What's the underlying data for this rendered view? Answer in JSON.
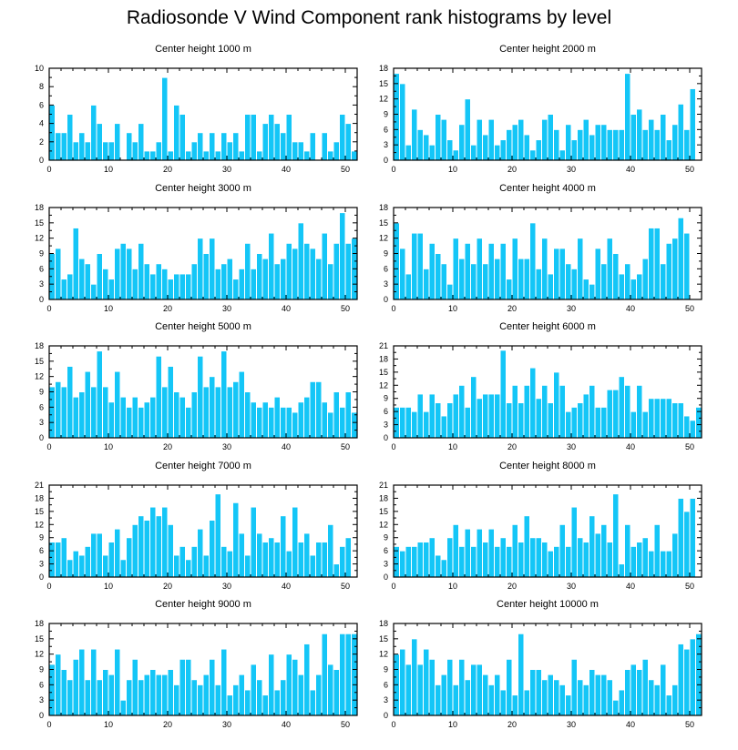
{
  "title": "Radiosonde V Wind Component rank histograms by level",
  "colors": {
    "bar": "#14c6f7",
    "bar_edge": "#ffffff",
    "axis": "#000000"
  },
  "chart_data": [
    {
      "type": "bar",
      "title": "Center height 1000 m",
      "xlim": [
        0,
        52
      ],
      "ylim": [
        0,
        10
      ],
      "xticks": [
        0,
        10,
        20,
        30,
        40,
        50
      ],
      "yticks": [
        0,
        2,
        4,
        6,
        8,
        10
      ],
      "values": [
        6,
        3,
        3,
        5,
        2,
        3,
        2,
        6,
        4,
        2,
        2,
        4,
        0,
        3,
        2,
        4,
        1,
        1,
        2,
        9,
        1,
        6,
        5,
        1,
        2,
        3,
        1,
        3,
        1,
        3,
        2,
        3,
        1,
        5,
        5,
        1,
        4,
        5,
        4,
        3,
        5,
        2,
        2,
        1,
        3,
        0,
        3,
        1,
        2,
        5,
        4,
        1
      ]
    },
    {
      "type": "bar",
      "title": "Center height 2000 m",
      "xlim": [
        0,
        52
      ],
      "ylim": [
        0,
        18
      ],
      "xticks": [
        0,
        10,
        20,
        30,
        40,
        50
      ],
      "yticks": [
        0,
        3,
        6,
        9,
        12,
        15,
        18
      ],
      "values": [
        17,
        15,
        3,
        10,
        6,
        5,
        3,
        9,
        8,
        4,
        2,
        7,
        12,
        3,
        8,
        5,
        8,
        3,
        4,
        6,
        7,
        8,
        5,
        2,
        4,
        8,
        9,
        6,
        2,
        7,
        4,
        6,
        8,
        5,
        7,
        7,
        6,
        6,
        6,
        17,
        9,
        10,
        6,
        8,
        6,
        9,
        4,
        7,
        11,
        6,
        14,
        0
      ]
    },
    {
      "type": "bar",
      "title": "Center height 3000 m",
      "xlim": [
        0,
        52
      ],
      "ylim": [
        0,
        18
      ],
      "xticks": [
        0,
        10,
        20,
        30,
        40,
        50
      ],
      "yticks": [
        0,
        3,
        6,
        9,
        12,
        15,
        18
      ],
      "values": [
        9,
        10,
        4,
        5,
        14,
        8,
        7,
        3,
        9,
        6,
        4,
        10,
        11,
        10,
        6,
        11,
        7,
        5,
        7,
        6,
        4,
        5,
        5,
        5,
        7,
        12,
        9,
        12,
        6,
        7,
        8,
        4,
        6,
        11,
        6,
        9,
        8,
        13,
        7,
        8,
        11,
        10,
        15,
        11,
        10,
        8,
        13,
        7,
        11,
        17,
        11,
        12
      ]
    },
    {
      "type": "bar",
      "title": "Center height 4000 m",
      "xlim": [
        0,
        52
      ],
      "ylim": [
        0,
        18
      ],
      "xticks": [
        0,
        10,
        20,
        30,
        40,
        50
      ],
      "yticks": [
        0,
        3,
        6,
        9,
        12,
        15,
        18
      ],
      "values": [
        15,
        10,
        5,
        13,
        13,
        6,
        11,
        9,
        7,
        3,
        12,
        8,
        11,
        7,
        12,
        7,
        11,
        8,
        11,
        4,
        12,
        8,
        8,
        15,
        6,
        12,
        5,
        10,
        10,
        7,
        6,
        12,
        4,
        3,
        10,
        7,
        12,
        9,
        5,
        7,
        4,
        5,
        8,
        14,
        14,
        7,
        11,
        12,
        16,
        13,
        0,
        0
      ]
    },
    {
      "type": "bar",
      "title": "Center height 5000 m",
      "xlim": [
        0,
        52
      ],
      "ylim": [
        0,
        18
      ],
      "xticks": [
        0,
        10,
        20,
        30,
        40,
        50
      ],
      "yticks": [
        0,
        3,
        6,
        9,
        12,
        15,
        18
      ],
      "values": [
        10,
        11,
        10,
        14,
        8,
        9,
        13,
        10,
        17,
        10,
        7,
        13,
        8,
        6,
        8,
        6,
        7,
        8,
        16,
        10,
        14,
        9,
        8,
        6,
        9,
        16,
        10,
        12,
        10,
        17,
        10,
        11,
        13,
        9,
        7,
        6,
        7,
        6,
        8,
        6,
        6,
        5,
        7,
        8,
        11,
        11,
        7,
        5,
        9,
        6,
        9,
        5
      ]
    },
    {
      "type": "bar",
      "title": "Center height 6000 m",
      "xlim": [
        0,
        52
      ],
      "ylim": [
        0,
        21
      ],
      "xticks": [
        0,
        10,
        20,
        30,
        40,
        50
      ],
      "yticks": [
        0,
        3,
        6,
        9,
        12,
        15,
        18,
        21
      ],
      "values": [
        7,
        7,
        7,
        6,
        10,
        6,
        10,
        8,
        5,
        8,
        10,
        12,
        7,
        14,
        9,
        10,
        10,
        10,
        20,
        8,
        12,
        8,
        12,
        16,
        9,
        12,
        8,
        15,
        12,
        6,
        7,
        8,
        10,
        12,
        7,
        7,
        11,
        11,
        14,
        12,
        6,
        12,
        6,
        9,
        9,
        9,
        9,
        8,
        8,
        5,
        4,
        7
      ]
    },
    {
      "type": "bar",
      "title": "Center height 7000 m",
      "xlim": [
        0,
        52
      ],
      "ylim": [
        0,
        21
      ],
      "xticks": [
        0,
        10,
        20,
        30,
        40,
        50
      ],
      "yticks": [
        0,
        3,
        6,
        9,
        12,
        15,
        18,
        21
      ],
      "values": [
        8,
        8,
        9,
        4,
        6,
        5,
        7,
        10,
        10,
        5,
        8,
        11,
        4,
        9,
        12,
        14,
        13,
        16,
        14,
        16,
        12,
        5,
        7,
        4,
        7,
        11,
        5,
        13,
        19,
        7,
        6,
        17,
        10,
        5,
        16,
        10,
        8,
        9,
        8,
        14,
        6,
        16,
        8,
        10,
        5,
        8,
        8,
        12,
        3,
        7,
        9,
        0
      ]
    },
    {
      "type": "bar",
      "title": "Center height 8000 m",
      "xlim": [
        0,
        52
      ],
      "ylim": [
        0,
        21
      ],
      "xticks": [
        0,
        10,
        20,
        30,
        40,
        50
      ],
      "yticks": [
        0,
        3,
        6,
        9,
        12,
        15,
        18,
        21
      ],
      "values": [
        7,
        6,
        7,
        7,
        8,
        8,
        9,
        5,
        4,
        9,
        12,
        7,
        11,
        7,
        11,
        8,
        11,
        7,
        9,
        7,
        12,
        8,
        14,
        9,
        9,
        8,
        6,
        7,
        12,
        7,
        16,
        9,
        8,
        14,
        10,
        12,
        8,
        19,
        3,
        12,
        7,
        8,
        9,
        6,
        12,
        6,
        6,
        10,
        18,
        15,
        18,
        0
      ]
    },
    {
      "type": "bar",
      "title": "Center height 9000 m",
      "xlim": [
        0,
        52
      ],
      "ylim": [
        0,
        18
      ],
      "xticks": [
        0,
        10,
        20,
        30,
        40,
        50
      ],
      "yticks": [
        0,
        3,
        6,
        9,
        12,
        15,
        18
      ],
      "values": [
        10,
        12,
        9,
        7,
        11,
        13,
        7,
        13,
        7,
        9,
        8,
        13,
        3,
        7,
        11,
        7,
        8,
        9,
        8,
        8,
        9,
        6,
        11,
        11,
        7,
        6,
        8,
        11,
        6,
        13,
        4,
        6,
        8,
        5,
        10,
        7,
        4,
        12,
        5,
        7,
        12,
        11,
        8,
        14,
        5,
        8,
        16,
        10,
        9,
        16,
        16,
        16
      ]
    },
    {
      "type": "bar",
      "title": "Center height 10000 m",
      "xlim": [
        0,
        52
      ],
      "ylim": [
        0,
        18
      ],
      "xticks": [
        0,
        10,
        20,
        30,
        40,
        50
      ],
      "yticks": [
        0,
        3,
        6,
        9,
        12,
        15,
        18
      ],
      "values": [
        12,
        13,
        10,
        15,
        10,
        13,
        11,
        6,
        8,
        11,
        6,
        11,
        7,
        10,
        10,
        8,
        6,
        8,
        5,
        11,
        4,
        16,
        5,
        9,
        9,
        7,
        8,
        7,
        6,
        4,
        11,
        7,
        6,
        9,
        8,
        8,
        7,
        3,
        5,
        9,
        10,
        9,
        11,
        7,
        6,
        10,
        4,
        6,
        14,
        13,
        15,
        16
      ]
    }
  ]
}
